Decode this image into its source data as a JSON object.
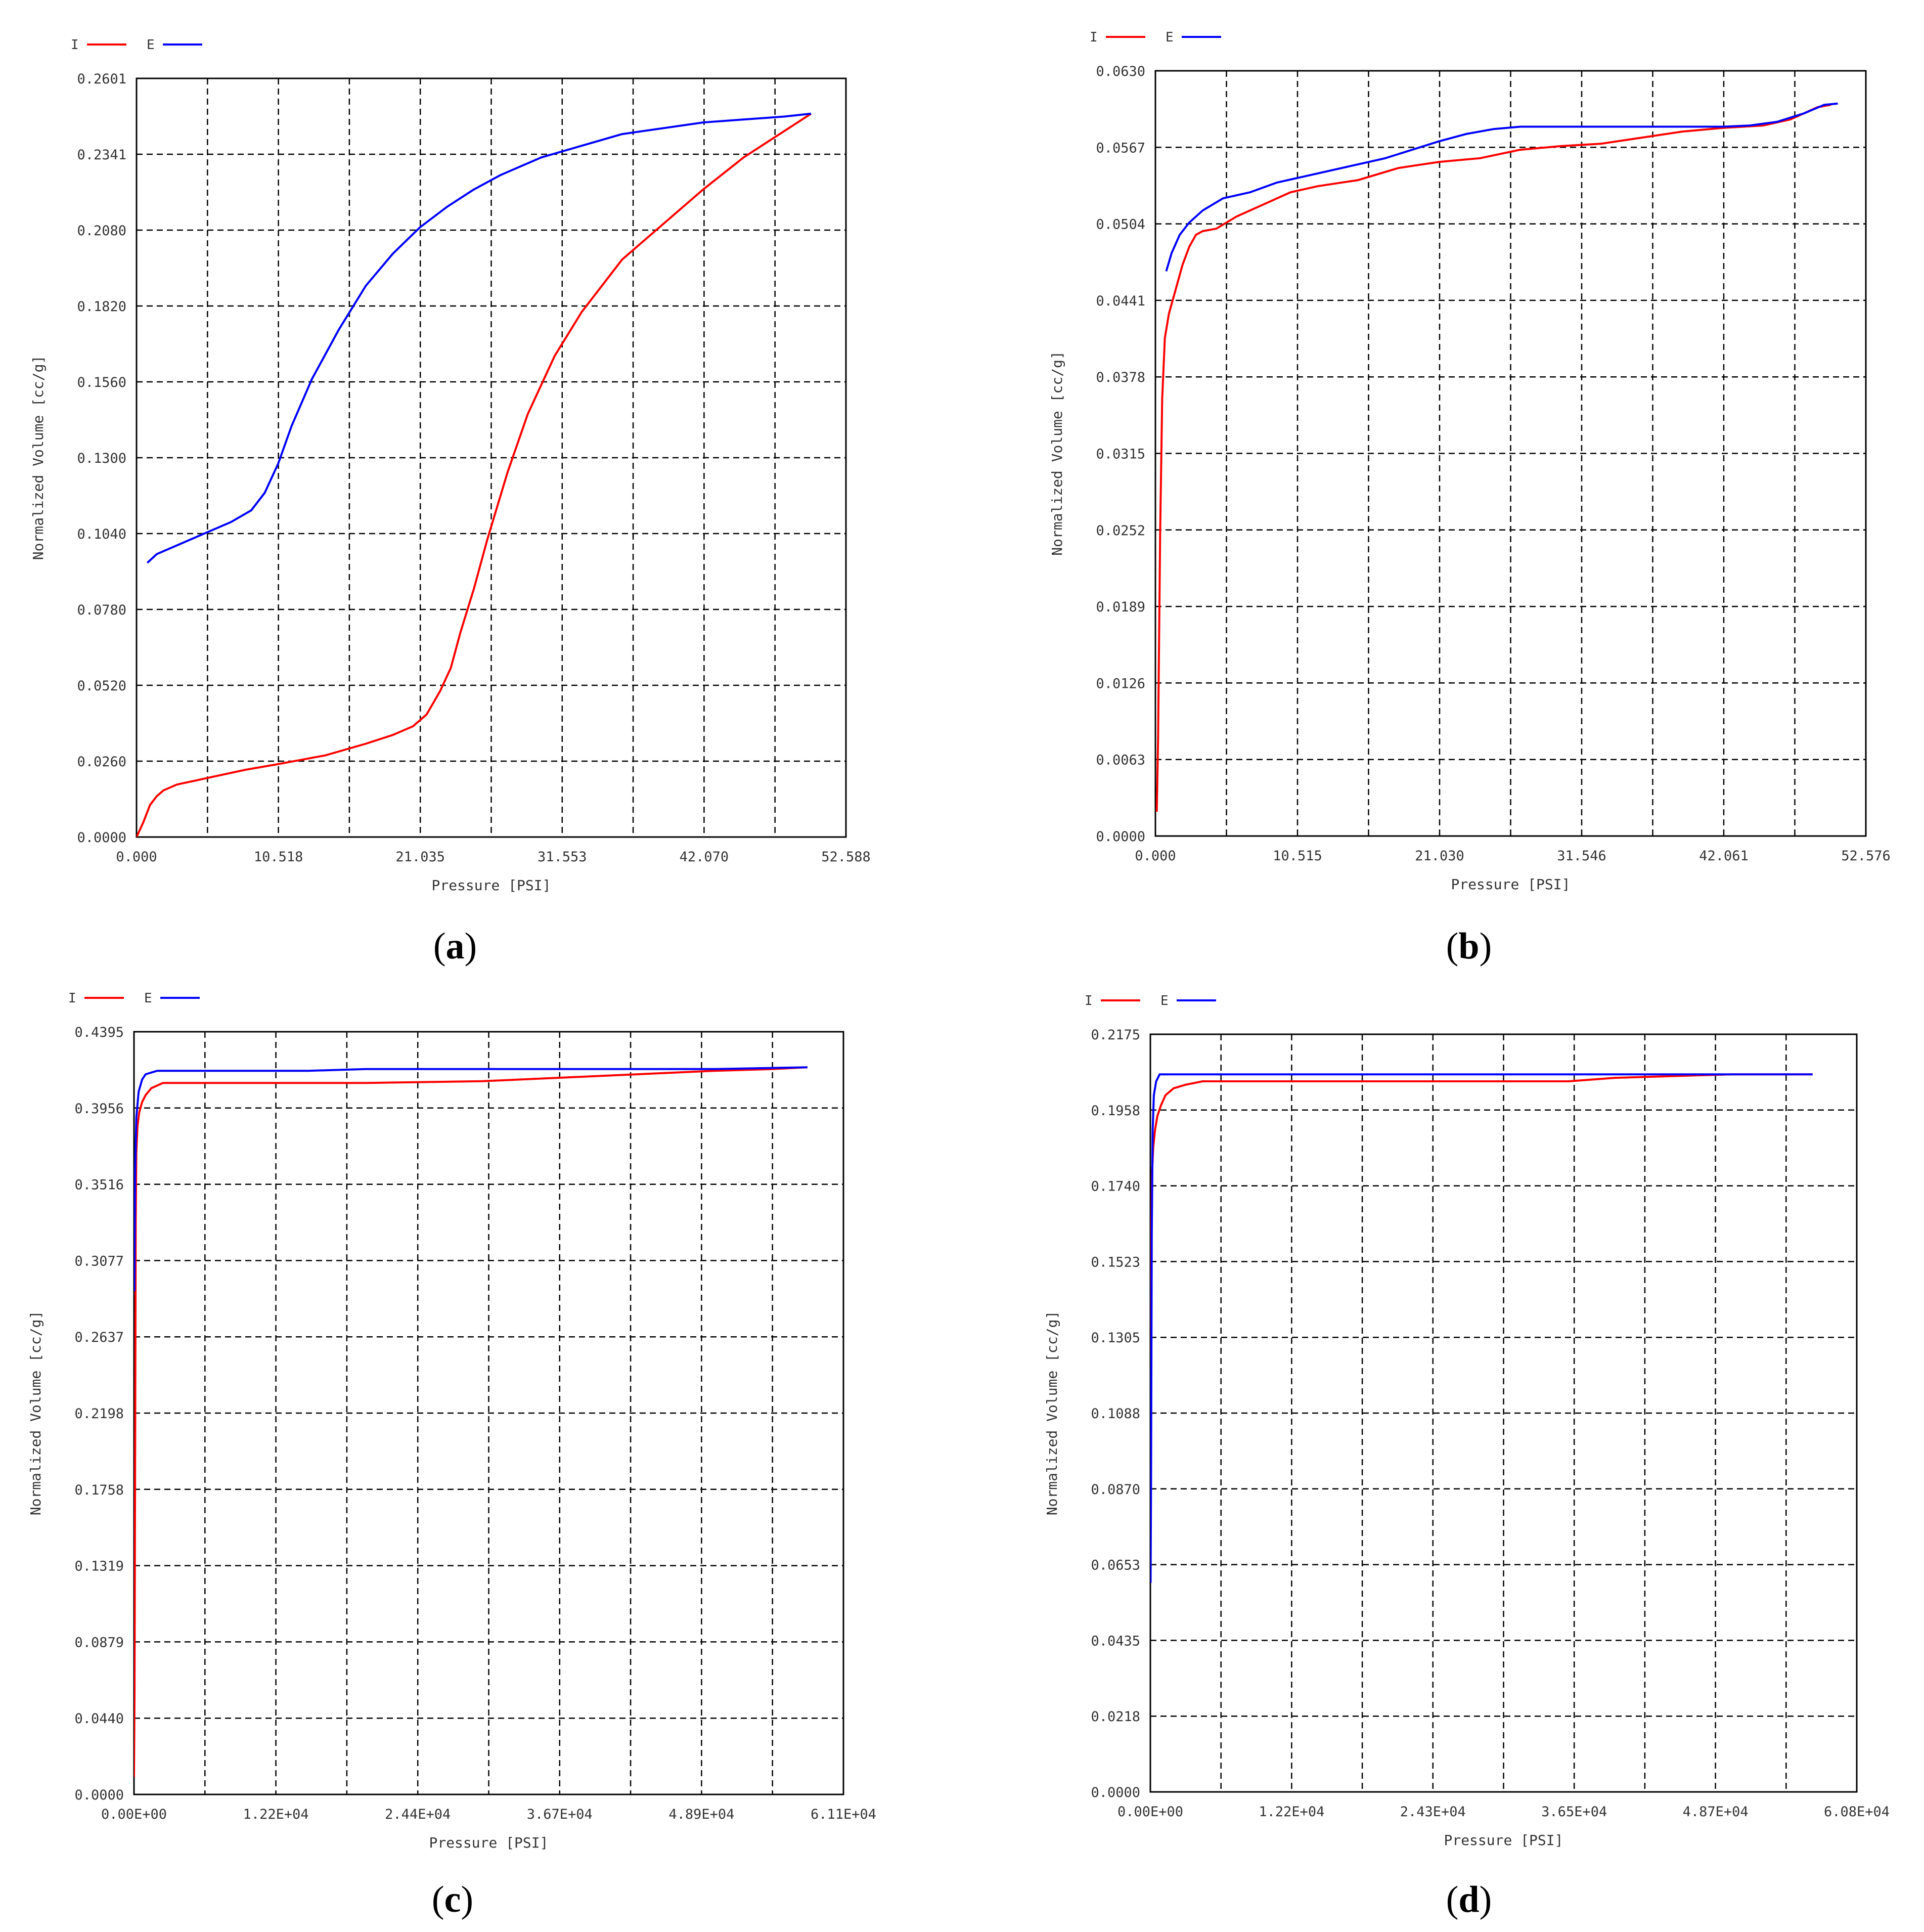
{
  "chart_data": [
    {
      "panel": "a",
      "type": "line",
      "caption_letter": "a",
      "xlabel": "Pressure [PSI]",
      "ylabel": "Normalized Volume [cc/g]",
      "x_tick_labels": [
        "0.000",
        "10.518",
        "21.035",
        "31.553",
        "42.070",
        "52.588"
      ],
      "y_tick_labels": [
        "0.0000",
        "0.0260",
        "0.0520",
        "0.0780",
        "0.1040",
        "0.1300",
        "0.1560",
        "0.1820",
        "0.2080",
        "0.2341",
        "0.2601"
      ],
      "xlim": [
        0,
        52.588
      ],
      "ylim": [
        0,
        0.2601
      ],
      "grid": true,
      "legend": "top-left",
      "series": [
        {
          "name": "I",
          "color": "#ff0000",
          "x": [
            0,
            0.5,
            1,
            1.5,
            2,
            3,
            5,
            8,
            10.5,
            14,
            17,
            19,
            20.5,
            21.5,
            22.5,
            23.3,
            24,
            25,
            26,
            27.5,
            29,
            31,
            33,
            36,
            39,
            42,
            45,
            48,
            50
          ],
          "y": [
            0,
            0.005,
            0.011,
            0.014,
            0.016,
            0.018,
            0.02,
            0.023,
            0.025,
            0.028,
            0.032,
            0.035,
            0.038,
            0.042,
            0.05,
            0.058,
            0.07,
            0.085,
            0.102,
            0.125,
            0.145,
            0.165,
            0.18,
            0.198,
            0.21,
            0.222,
            0.233,
            0.242,
            0.248
          ]
        },
        {
          "name": "E",
          "color": "#0000ff",
          "x": [
            0.8,
            1.5,
            3,
            5,
            7,
            8.5,
            9.5,
            10.5,
            11.5,
            13,
            15,
            17,
            19,
            21,
            23,
            25,
            27,
            30,
            33,
            36,
            39,
            42,
            45,
            48,
            50
          ],
          "y": [
            0.094,
            0.097,
            0.1,
            0.104,
            0.108,
            0.112,
            0.118,
            0.128,
            0.141,
            0.157,
            0.174,
            0.189,
            0.2,
            0.209,
            0.216,
            0.222,
            0.227,
            0.233,
            0.237,
            0.241,
            0.243,
            0.245,
            0.246,
            0.247,
            0.248
          ]
        }
      ]
    },
    {
      "panel": "b",
      "type": "line",
      "caption_letter": "b",
      "xlabel": "Pressure [PSI]",
      "ylabel": "Normalized Volume [cc/g]",
      "x_tick_labels": [
        "0.000",
        "10.515",
        "21.030",
        "31.546",
        "42.061",
        "52.576"
      ],
      "y_tick_labels": [
        "0.0000",
        "0.0063",
        "0.0126",
        "0.0189",
        "0.0252",
        "0.0315",
        "0.0378",
        "0.0441",
        "0.0504",
        "0.0567",
        "0.0630"
      ],
      "xlim": [
        0,
        52.576
      ],
      "ylim": [
        0,
        0.063
      ],
      "grid": true,
      "legend": "top-left",
      "series": [
        {
          "name": "I",
          "color": "#ff0000",
          "x": [
            0.1,
            0.2,
            0.35,
            0.5,
            0.7,
            1,
            1.5,
            2,
            2.5,
            3,
            3.5,
            4.5,
            6,
            8,
            10,
            12,
            15,
            18,
            21,
            24,
            27,
            30,
            33,
            36,
            39,
            42,
            45,
            47,
            49,
            50
          ],
          "y": [
            0.002,
            0.008,
            0.025,
            0.036,
            0.041,
            0.043,
            0.045,
            0.047,
            0.0485,
            0.0495,
            0.0498,
            0.05,
            0.051,
            0.052,
            0.053,
            0.0535,
            0.054,
            0.055,
            0.0555,
            0.0558,
            0.0565,
            0.0568,
            0.057,
            0.0575,
            0.058,
            0.0583,
            0.0585,
            0.059,
            0.06,
            0.0602
          ]
        },
        {
          "name": "E",
          "color": "#0000ff",
          "x": [
            0.8,
            1.2,
            1.8,
            2.5,
            3.5,
            5,
            7,
            9,
            11,
            13,
            15,
            17,
            19,
            21,
            23,
            25,
            27,
            30,
            33,
            36,
            39,
            42,
            44,
            46,
            48,
            49.5,
            50.5
          ],
          "y": [
            0.0465,
            0.048,
            0.0495,
            0.0505,
            0.0515,
            0.0525,
            0.053,
            0.0538,
            0.0543,
            0.0548,
            0.0553,
            0.0558,
            0.0565,
            0.0572,
            0.0578,
            0.0582,
            0.0584,
            0.0584,
            0.0584,
            0.0584,
            0.0584,
            0.0584,
            0.0585,
            0.0588,
            0.0595,
            0.0602,
            0.0603
          ]
        }
      ]
    },
    {
      "panel": "c",
      "type": "line",
      "caption_letter": "c",
      "xlabel": "Pressure [PSI]",
      "ylabel": "Normalized Volume [cc/g]",
      "x_tick_labels": [
        "0.00E+00",
        "1.22E+04",
        "2.44E+04",
        "3.67E+04",
        "4.89E+04",
        "6.11E+04"
      ],
      "y_tick_labels": [
        "0.0000",
        "0.0440",
        "0.0879",
        "0.1319",
        "0.1758",
        "0.2198",
        "0.2637",
        "0.3077",
        "0.3516",
        "0.3956",
        "0.4395"
      ],
      "xlim": [
        0,
        61100
      ],
      "ylim": [
        0,
        0.4395
      ],
      "grid": true,
      "legend": "top-left",
      "series": [
        {
          "name": "I",
          "color": "#ff0000",
          "x": [
            0,
            50,
            100,
            150,
            200,
            300,
            450,
            700,
            1000,
            1500,
            2500,
            4000,
            10000,
            20000,
            30000,
            40000,
            50000,
            55000,
            58000
          ],
          "y": [
            0.01,
            0.06,
            0.2,
            0.33,
            0.37,
            0.385,
            0.393,
            0.399,
            0.403,
            0.407,
            0.41,
            0.41,
            0.41,
            0.41,
            0.411,
            0.414,
            0.417,
            0.418,
            0.419
          ]
        },
        {
          "name": "E",
          "color": "#0000ff",
          "x": [
            30,
            100,
            200,
            400,
            700,
            1000,
            1500,
            2000,
            5000,
            15000,
            20000,
            30000,
            40000,
            50000,
            58000
          ],
          "y": [
            0.29,
            0.36,
            0.39,
            0.405,
            0.412,
            0.415,
            0.416,
            0.417,
            0.417,
            0.417,
            0.418,
            0.418,
            0.418,
            0.418,
            0.419
          ]
        }
      ]
    },
    {
      "panel": "d",
      "type": "line",
      "caption_letter": "d",
      "xlabel": "Pressure [PSI]",
      "ylabel": "Normalized Volume [cc/g]",
      "x_tick_labels": [
        "0.00E+00",
        "1.22E+04",
        "2.43E+04",
        "3.65E+04",
        "4.87E+04",
        "6.08E+04"
      ],
      "y_tick_labels": [
        "0.0000",
        "0.0218",
        "0.0435",
        "0.0653",
        "0.0870",
        "0.1088",
        "0.1305",
        "0.1523",
        "0.1740",
        "0.1958",
        "0.2175"
      ],
      "xlim": [
        0,
        60800
      ],
      "ylim": [
        0,
        0.2175
      ],
      "grid": true,
      "legend": "top-left",
      "series": [
        {
          "name": "I",
          "color": "#ff0000",
          "x": [
            0,
            50,
            100,
            150,
            250,
            400,
            600,
            900,
            1300,
            2000,
            3000,
            4500,
            10000,
            20000,
            30000,
            36000,
            40000,
            50000,
            57000
          ],
          "y": [
            0.06,
            0.12,
            0.165,
            0.178,
            0.185,
            0.19,
            0.194,
            0.197,
            0.2,
            0.202,
            0.203,
            0.204,
            0.204,
            0.204,
            0.204,
            0.204,
            0.205,
            0.206,
            0.206
          ]
        },
        {
          "name": "E",
          "color": "#0000ff",
          "x": [
            20,
            60,
            120,
            200,
            300,
            500,
            800,
            2000,
            10000,
            30000,
            50000,
            57000
          ],
          "y": [
            0.06,
            0.09,
            0.16,
            0.19,
            0.2,
            0.204,
            0.206,
            0.206,
            0.206,
            0.206,
            0.206,
            0.206
          ]
        }
      ]
    }
  ]
}
